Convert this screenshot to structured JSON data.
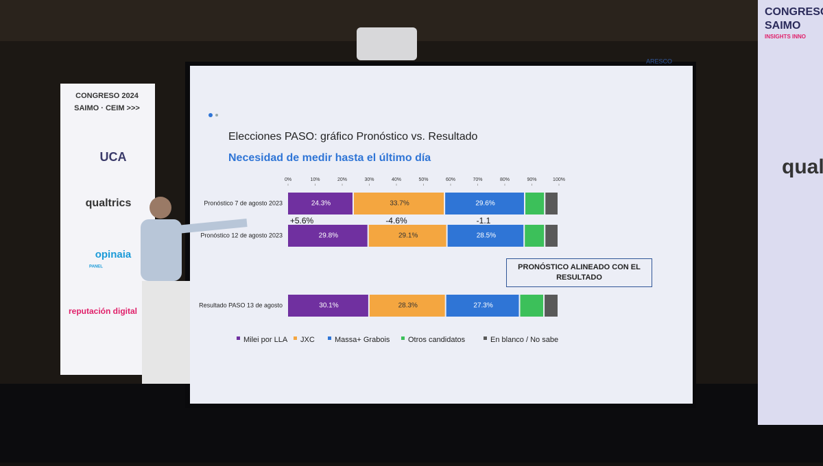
{
  "chart_data": {
    "type": "stacked-bar-horizontal",
    "title": "Elecciones PASO: gráfico Pronóstico vs. Resultado",
    "subtitle": "Necesidad de medir hasta el último día",
    "categories": [
      "Pronóstico 7 de agosto 2023",
      "Pronóstico 12 de agosto 2023",
      "Resultado PASO 13 de agosto"
    ],
    "series": [
      {
        "name": "Milei por LLA",
        "color": "#7030a0",
        "values": [
          24.3,
          29.8,
          30.1
        ],
        "value_labels": [
          "24.3%",
          "29.8%",
          "30.1%"
        ]
      },
      {
        "name": "JXC",
        "color": "#f4a640",
        "values": [
          33.7,
          29.1,
          28.3
        ],
        "value_labels": [
          "33.7%",
          "29.1%",
          "28.3%"
        ]
      },
      {
        "name": "Massa+ Grabois",
        "color": "#2f75d6",
        "values": [
          29.6,
          28.5,
          27.3
        ],
        "value_labels": [
          "29.6%",
          "28.5%",
          "27.3%"
        ]
      },
      {
        "name": "Otros candidatos",
        "color": "#3cc05a",
        "values": [
          7.4,
          7.6,
          9.0
        ]
      },
      {
        "name": "En blanco / No sabe",
        "color": "#595959",
        "values": [
          5.0,
          5.0,
          5.3
        ]
      }
    ],
    "xlim": [
      0,
      100
    ],
    "xticks": [
      {
        "value": 0,
        "label": "0%"
      },
      {
        "value": 10,
        "label": "10%"
      },
      {
        "value": 20,
        "label": "20%"
      },
      {
        "value": 30,
        "label": "30%"
      },
      {
        "value": 40,
        "label": "40%"
      },
      {
        "value": 50,
        "label": "50%"
      },
      {
        "value": 60,
        "label": "60%"
      },
      {
        "value": 70,
        "label": "70%"
      },
      {
        "value": 80,
        "label": "80%"
      },
      {
        "value": 90,
        "label": "90%"
      },
      {
        "value": 100,
        "label": "100%"
      }
    ],
    "annotations": [
      "+5.6%",
      "-4.6%",
      "-1.1"
    ],
    "callout": "PRONÓSTICO ALINEADO CON EL RESULTADO",
    "legend": "bottom"
  },
  "slide": {
    "logo": "ARESCO"
  },
  "left_banner": [
    "CONGRESO 2024",
    "SAIMO · CEIM >>>",
    "UCA",
    "qualtrics",
    "opinaia",
    "PANEL",
    "reputación digital"
  ],
  "right_banner": [
    "CONGRESO",
    "SAIMO",
    "INSIGHTS INNO",
    "qual"
  ]
}
